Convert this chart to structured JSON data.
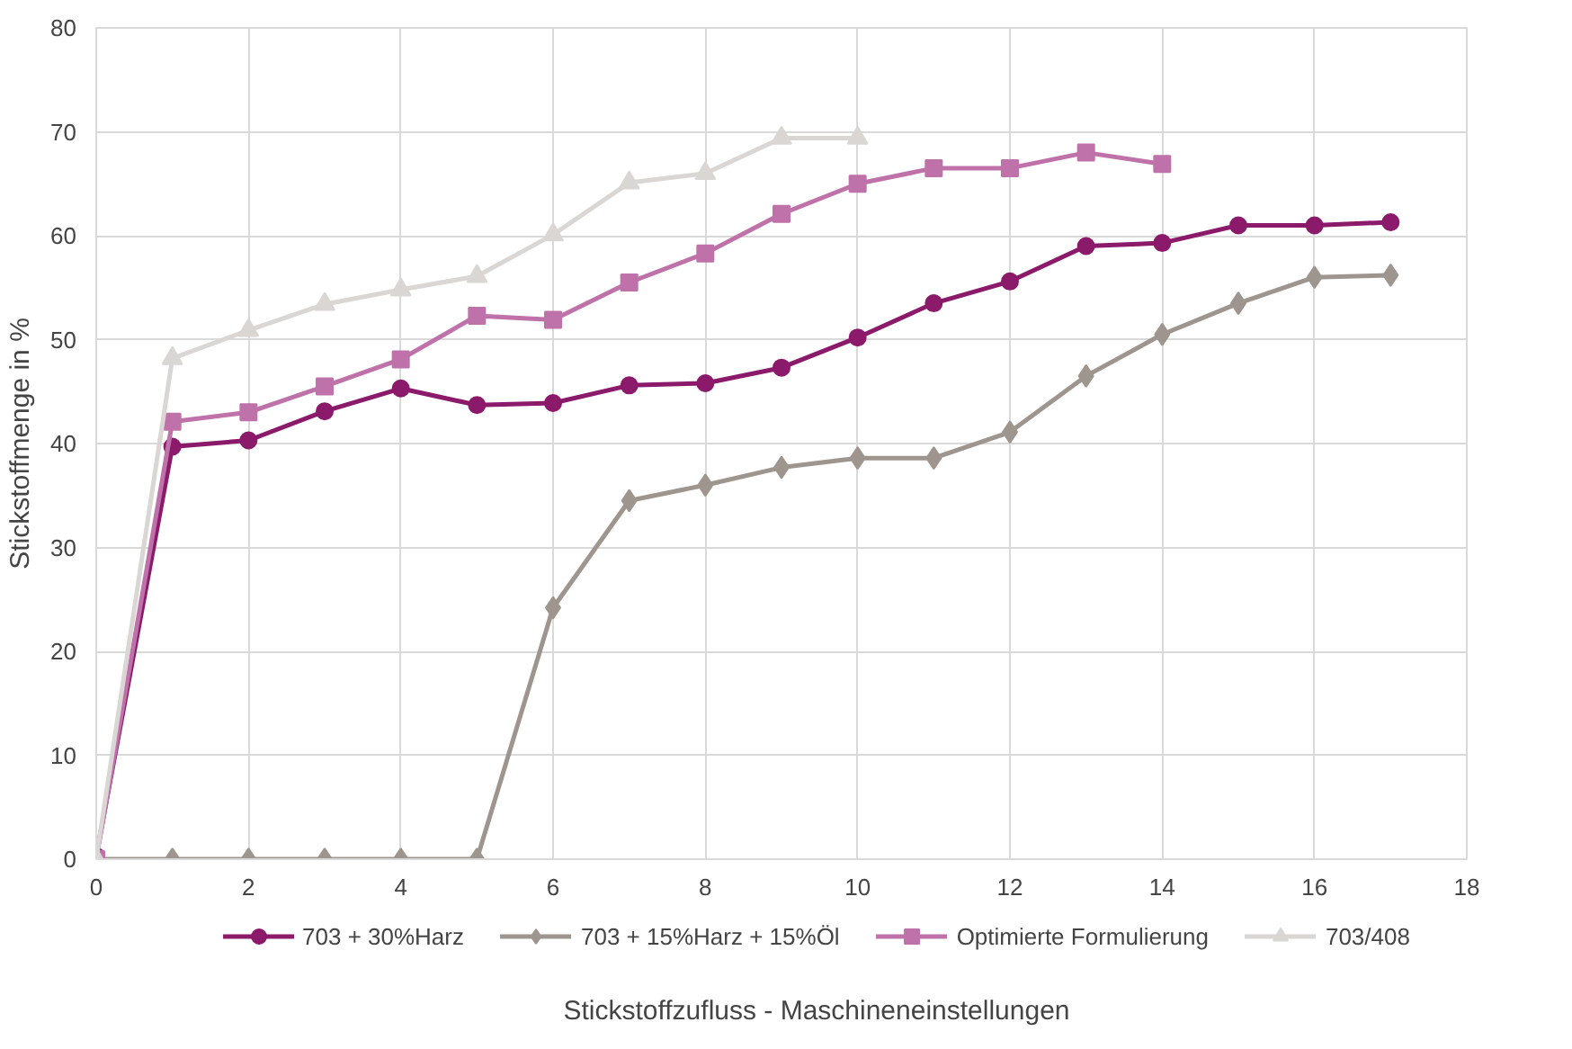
{
  "chart_data": {
    "type": "line",
    "xlabel": "Stickstoffzufluss - Maschineneinstellungen",
    "ylabel": "Stickstoffmenge in %",
    "x": [
      0,
      1,
      2,
      3,
      4,
      5,
      6,
      7,
      8,
      9,
      10,
      11,
      12,
      13,
      14,
      15,
      16,
      17
    ],
    "series": [
      {
        "name": "703 + 30%Harz",
        "color": "#8b1a6b",
        "marker": "circle",
        "values": [
          0.3,
          39.7,
          40.3,
          43.1,
          45.3,
          43.7,
          43.9,
          45.6,
          45.8,
          47.3,
          50.2,
          53.5,
          55.6,
          59,
          59.3,
          61,
          61,
          61.3
        ]
      },
      {
        "name": "703 + 15%Harz + 15%Öl",
        "color": "#9e968e",
        "marker": "diamond",
        "values": [
          0,
          0,
          0,
          0,
          0,
          0,
          24.2,
          34.5,
          36,
          37.7,
          38.6,
          38.6,
          41.1,
          46.5,
          50.5,
          53.5,
          56,
          56.2
        ]
      },
      {
        "name": "Optimierte Formulierung",
        "color": "#bf72a9",
        "marker": "square",
        "values": [
          0,
          42.1,
          43,
          45.5,
          48.1,
          52.3,
          51.9,
          55.5,
          58.3,
          62.1,
          65,
          66.5,
          66.5,
          68,
          66.9,
          null,
          null,
          null
        ]
      },
      {
        "name": "703/408",
        "color": "#d9d6d3",
        "marker": "triangle",
        "values": [
          0,
          48.2,
          50.9,
          53.4,
          54.8,
          56.1,
          60.1,
          65.1,
          66,
          69.4,
          69.4,
          null,
          null,
          null,
          null,
          null,
          null,
          null
        ]
      }
    ],
    "xlim": [
      0,
      18
    ],
    "xticks": [
      0,
      2,
      4,
      6,
      8,
      10,
      12,
      14,
      16,
      18
    ],
    "ylim": [
      0,
      80
    ],
    "yticks": [
      0,
      10,
      20,
      30,
      40,
      50,
      60,
      70,
      80
    ],
    "grid": true,
    "legend": "bottom",
    "line_style": "solid"
  }
}
